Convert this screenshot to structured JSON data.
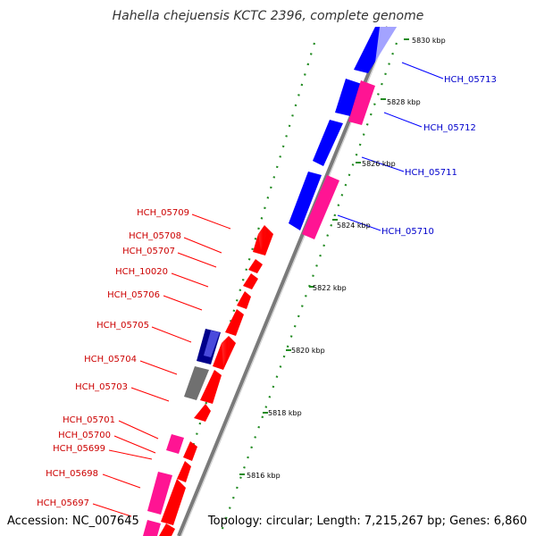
{
  "title": "Hahella chejuensis KCTC 2396, complete genome",
  "accession": "Accession: NC_007645",
  "topology": "Topology: circular; Length: 7,215,267 bp; Genes: 6,860",
  "colors": {
    "forward_gene": "#ff0000",
    "reverse_gene": "#0000ff",
    "rna_gene": "#ff1493",
    "pseudo_gene": "#808080",
    "dark_gene": "#00008b",
    "backbone": "#888888",
    "gc_dots": "#228b22"
  },
  "diagram": {
    "ticks": [
      {
        "label": "5830 kbp"
      },
      {
        "label": "5828 kbp"
      },
      {
        "label": "5826 kbp"
      },
      {
        "label": "5824 kbp"
      },
      {
        "label": "5822 kbp"
      },
      {
        "label": "5820 kbp"
      },
      {
        "label": "5818 kbp"
      },
      {
        "label": "5816 kbp"
      }
    ],
    "labels_right": [
      {
        "text": "HCH_05713"
      },
      {
        "text": "HCH_05712"
      },
      {
        "text": "HCH_05711"
      },
      {
        "text": "HCH_05710"
      }
    ],
    "labels_left": [
      {
        "text": "HCH_05709"
      },
      {
        "text": "HCH_05708"
      },
      {
        "text": "HCH_05707"
      },
      {
        "text": "HCH_10020"
      },
      {
        "text": "HCH_05706"
      },
      {
        "text": "HCH_05705"
      },
      {
        "text": "HCH_05704"
      },
      {
        "text": "HCH_05703"
      },
      {
        "text": "HCH_05701"
      },
      {
        "text": "HCH_05700"
      },
      {
        "text": "HCH_05699"
      },
      {
        "text": "HCH_05698"
      },
      {
        "text": "HCH_05697"
      }
    ]
  }
}
